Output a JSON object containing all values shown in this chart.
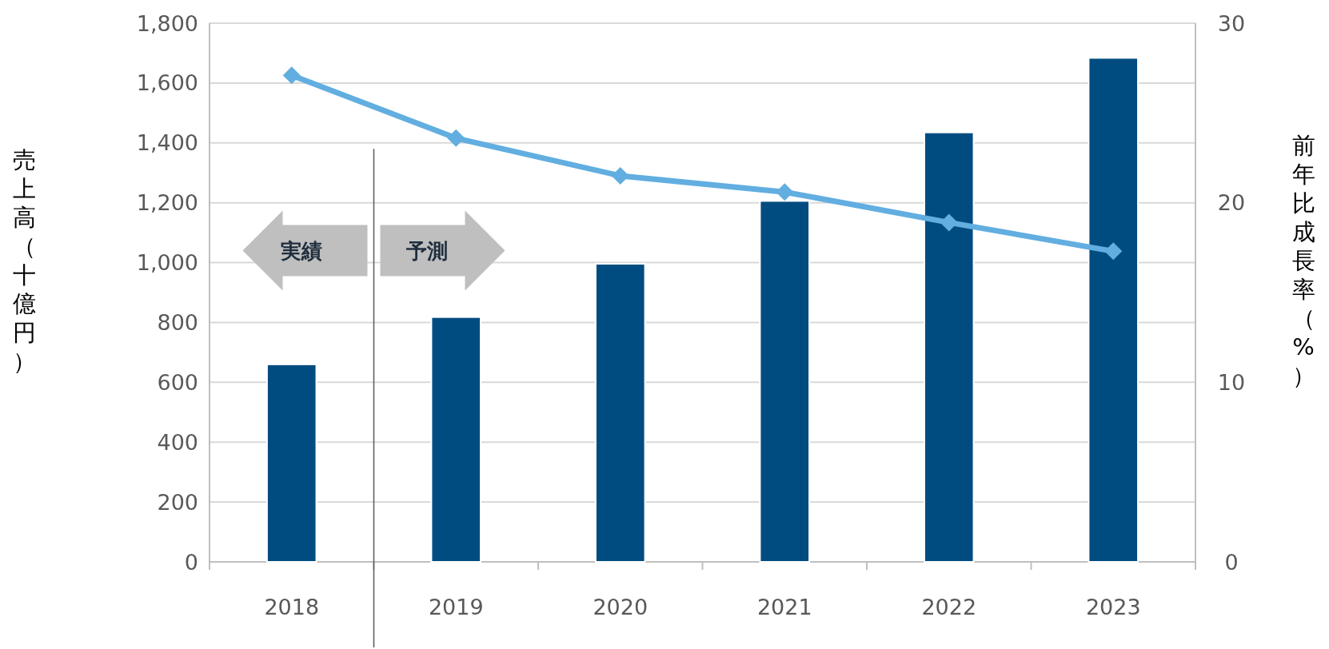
{
  "chart_data": {
    "type": "bar",
    "ylabel": "売上高（十億円）",
    "y2label": "前年比成長率（%）",
    "categories": [
      "2018",
      "2019",
      "2020",
      "2021",
      "2022",
      "2023"
    ],
    "series": [
      {
        "color": "#004c80",
        "values": [
          660,
          818,
          996,
          1206,
          1435,
          1684
        ]
      },
      {
        "type": "line",
        "axis": "y2",
        "color": "#62aee0",
        "marker": "diamond",
        "line_style": "solid",
        "values": [
          27.1,
          23.6,
          21.5,
          20.6,
          18.9,
          17.3
        ]
      }
    ],
    "ylim": [
      0,
      1800
    ],
    "yticks": [
      0,
      200,
      400,
      600,
      800,
      {
        "value": 1000,
        "label": "1,000"
      },
      {
        "value": 1200,
        "label": "1,200"
      },
      {
        "value": 1400,
        "label": "1,400"
      },
      {
        "value": 1600,
        "label": "1,600"
      },
      {
        "value": 1800,
        "label": "1,800"
      }
    ],
    "y2lim": [
      0,
      30
    ],
    "y2ticks": [
      0,
      10,
      20,
      30
    ],
    "grid": "y",
    "ref_lines": [
      {
        "axis": "x",
        "value": "2019",
        "color": "#595959",
        "line_style": "solid"
      }
    ],
    "annotations": [
      "実績",
      "予測"
    ]
  }
}
